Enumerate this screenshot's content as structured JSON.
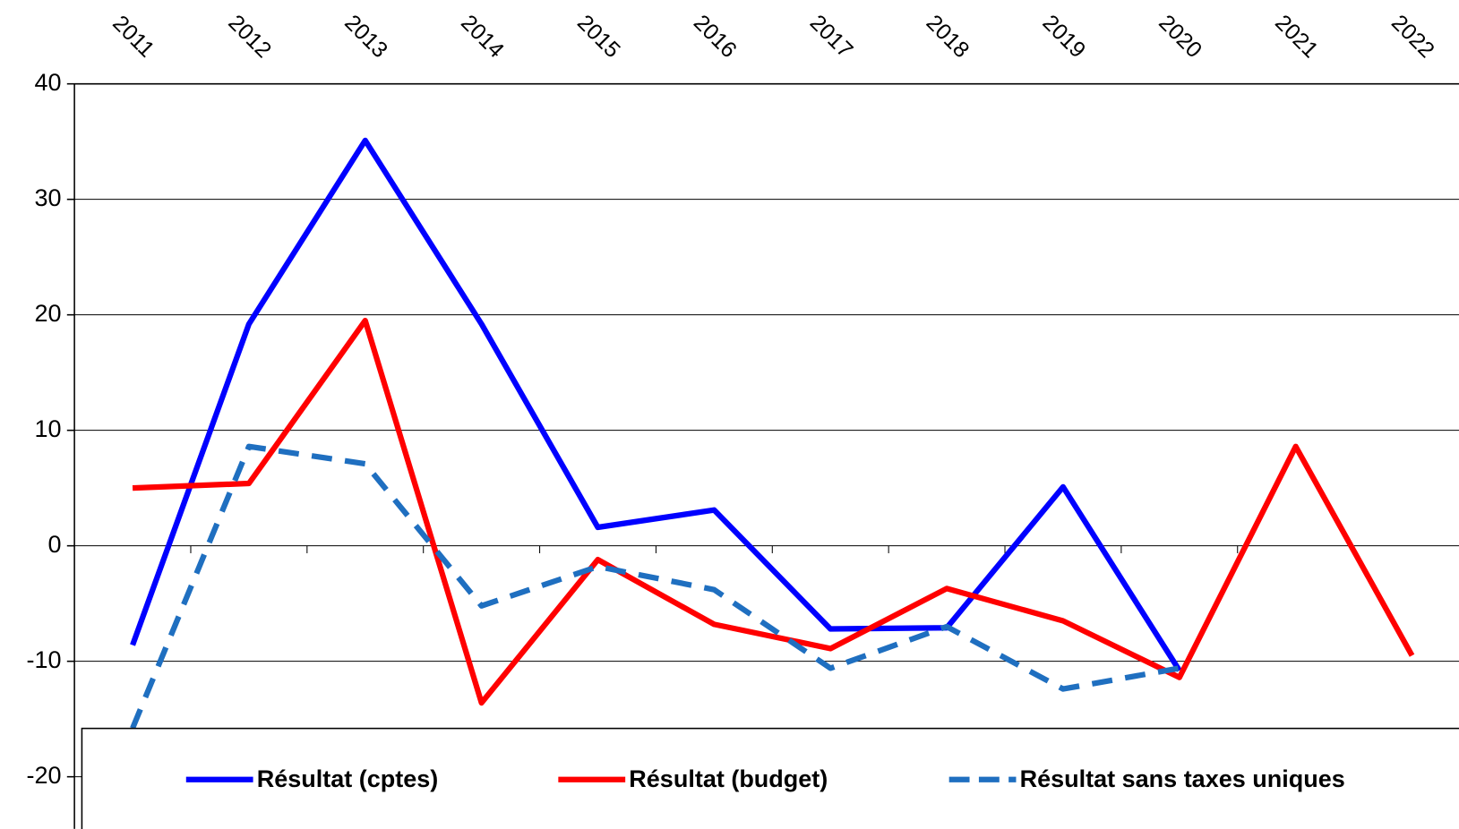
{
  "chart_data": {
    "type": "line",
    "categories": [
      "2011",
      "2012",
      "2013",
      "2014",
      "2015",
      "2016",
      "2017",
      "2018",
      "2019",
      "2020",
      "2021",
      "2022"
    ],
    "series": [
      {
        "name": "Résultat (cptes)",
        "color": "#0000ff",
        "dashed": false,
        "values": [
          -8.6,
          19.2,
          35.1,
          19.2,
          1.6,
          3.1,
          -7.2,
          -7.1,
          5.1,
          -10.8,
          null,
          null
        ]
      },
      {
        "name": "Résultat (budget)",
        "color": "#ff0000",
        "dashed": false,
        "values": [
          5.0,
          5.4,
          19.5,
          -13.6,
          -1.2,
          -6.8,
          -8.9,
          -3.7,
          -6.5,
          -11.4,
          8.6,
          -9.5
        ]
      },
      {
        "name": "Résultat sans taxes uniques",
        "color": "#1f6fc0",
        "dashed": true,
        "values": [
          -15.8,
          8.6,
          7.1,
          -5.2,
          -1.8,
          -3.8,
          -10.6,
          -7.0,
          -12.4,
          -10.6,
          null,
          null
        ]
      }
    ],
    "ylim": [
      -20,
      40
    ],
    "yticks": [
      -20,
      -10,
      0,
      10,
      20,
      30,
      40
    ],
    "grid": true,
    "legend": "bottom"
  }
}
